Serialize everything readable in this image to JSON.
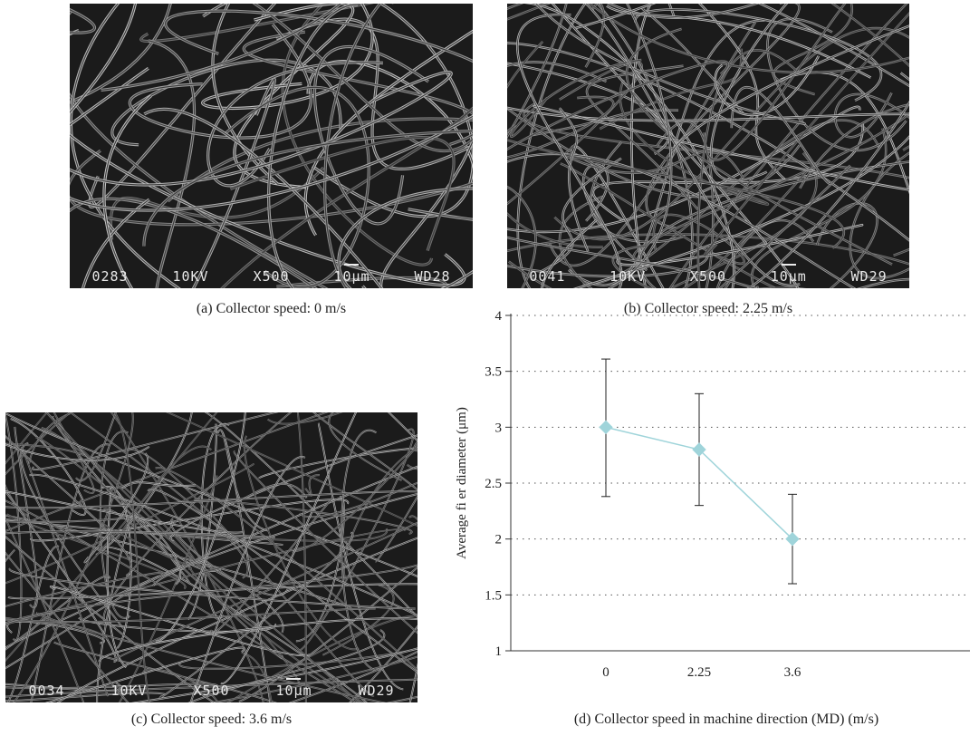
{
  "panels": {
    "a": {
      "caption": "(a)  Collector speed: 0 m/s",
      "sem_info": [
        "0283",
        "10KV",
        "X500",
        "10μm",
        "WD28"
      ]
    },
    "b": {
      "caption": "(b)  Collector speed: 2.25 m/s",
      "sem_info": [
        "0041",
        "10KV",
        "X500",
        "10μm",
        "WD29"
      ]
    },
    "c": {
      "caption": "(c)  Collector speed: 3.6 m/s",
      "sem_info": [
        "0034",
        "10KV",
        "X500",
        "10μm",
        "WD29"
      ]
    },
    "d": {
      "caption": "(d)  Collector speed in machine direction (MD) (m/s)"
    }
  },
  "chart_data": {
    "type": "line",
    "categories": [
      "0",
      "2.25",
      "3.6"
    ],
    "series": [
      {
        "values": [
          3.0,
          2.8,
          2.0
        ],
        "error_low": [
          2.38,
          2.3,
          1.6
        ],
        "error_high": [
          3.61,
          3.3,
          2.4
        ],
        "color": "#9fd4da"
      }
    ],
    "ylabel": "Average fi  er diameter (μm)",
    "xlabel": "",
    "ylim": [
      1,
      4
    ],
    "yticks": [
      "1",
      "1.5",
      "2",
      "2.5",
      "3",
      "3.5",
      "4"
    ],
    "grid": "horizontal-dotted",
    "marker": "diamond"
  }
}
